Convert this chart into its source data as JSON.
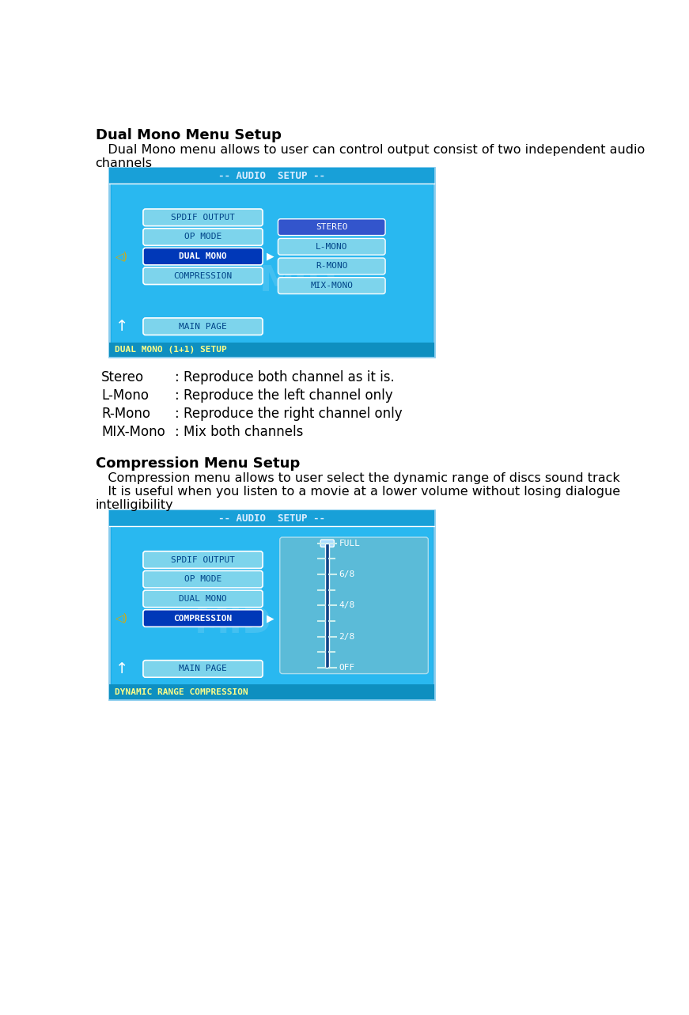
{
  "title1": "Dual Mono Menu Setup",
  "desc1_line1": "   Dual Mono menu allows to user can control output consist of two independent audio",
  "desc1_line2": "channels",
  "image1_title": "-- AUDIO  SETUP --",
  "image1_label": "DUAL MONO (1+1) SETUP",
  "image1_menu_items": [
    "SPDIF OUTPUT",
    "OP MODE",
    "DUAL MONO",
    "COMPRESSION",
    "MAIN PAGE"
  ],
  "image1_submenu_items": [
    "STEREO",
    "L-MONO",
    "R-MONO",
    "MIX-MONO"
  ],
  "image1_selected_menu": "DUAL MONO",
  "image1_selected_submenu": "STEREO",
  "entries": [
    [
      "Stereo",
      ": Reproduce both channel as it is."
    ],
    [
      "L-Mono",
      ": Reproduce the left channel only"
    ],
    [
      "R-Mono",
      ": Reproduce the right channel only"
    ],
    [
      "MIX-Mono",
      ": Mix both channels"
    ]
  ],
  "title2": "Compression Menu Setup",
  "desc2_line1": "   Compression menu allows to user select the dynamic range of discs sound track",
  "desc2_line2": "   It is useful when you listen to a movie at a lower volume without losing dialogue",
  "desc2_line3": "intelligibility",
  "image2_title": "-- AUDIO  SETUP --",
  "image2_label": "DYNAMIC RANGE COMPRESSION",
  "image2_menu_items": [
    "SPDIF OUTPUT",
    "OP MODE",
    "DUAL MONO",
    "COMPRESSION",
    "MAIN PAGE"
  ],
  "image2_selected_menu": "COMPRESSION",
  "image2_scale_labels": [
    "FULL",
    "6/8",
    "4/8",
    "2/8",
    "OFF"
  ],
  "outer_bg": "#1AACE8",
  "inner_bg": "#29B8F0",
  "title_bar_bg": "#18A0D8",
  "label_bar_bg": "#0E8FC0",
  "menu_item_bg": "#7DD4EC",
  "menu_selected_bg": "#0038B8",
  "submenu_item_bg": "#7DD4EC",
  "submenu_selected_bg": "#3355CC",
  "menu_text_dark": "#004488",
  "menu_text_white": "#FFFFFF",
  "label_text_color": "#CCFFFF",
  "title_text_color": "#DDEEFF",
  "scale_panel_bg": "#5BBBD8",
  "scale_bar_color": "#114488",
  "scale_handle_color": "#AADDFF"
}
